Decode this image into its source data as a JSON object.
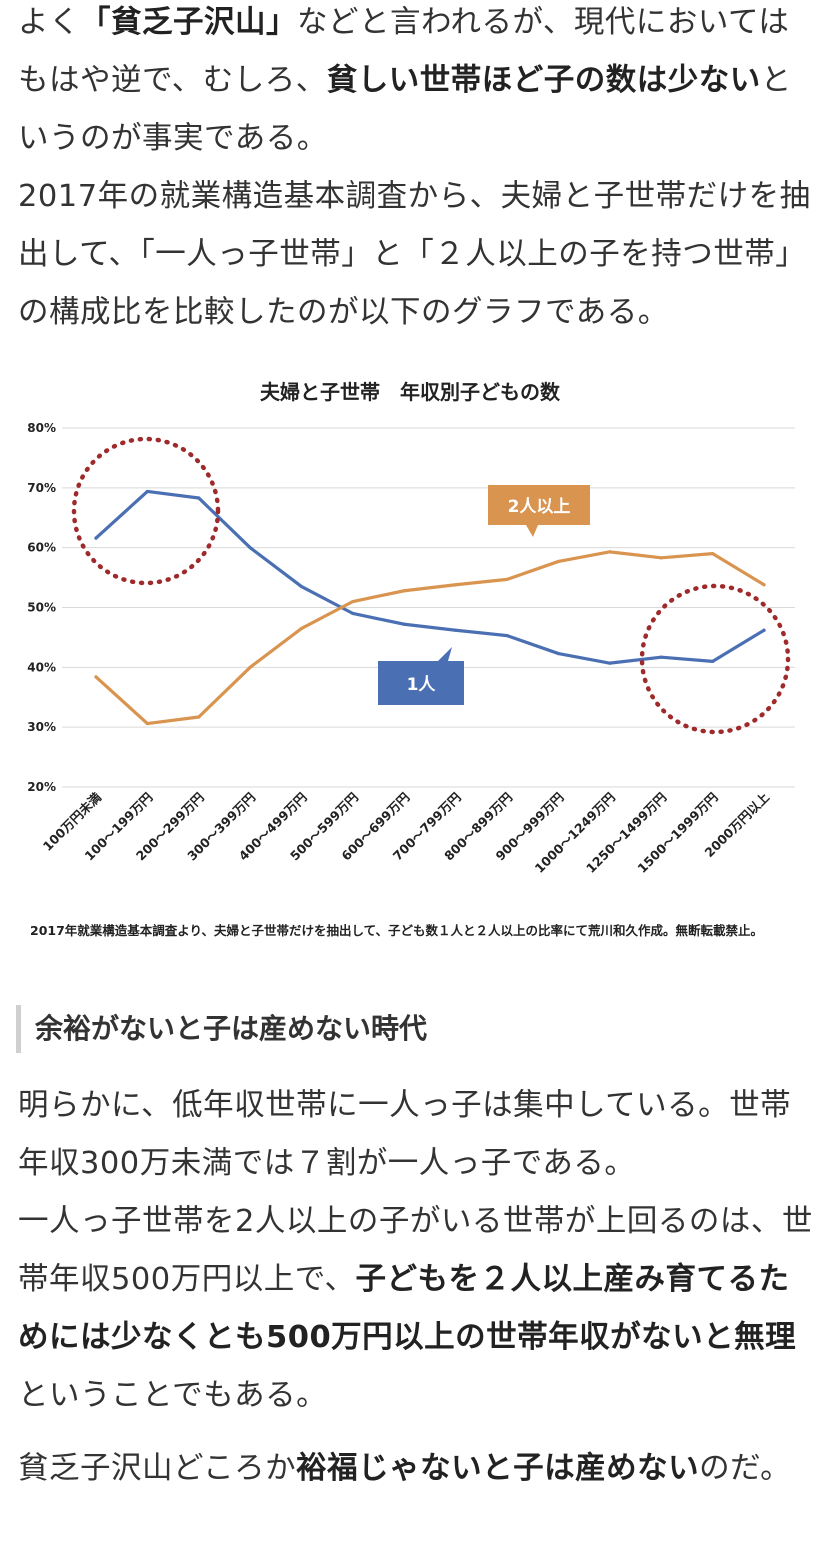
{
  "article": {
    "p1": [
      {
        "t": "よく",
        "b": false
      },
      {
        "t": "「貧乏子沢山」",
        "b": true
      },
      {
        "t": "などと言われるが、現代においてはもはや逆で、むしろ、",
        "b": false
      },
      {
        "t": "貧しい世帯ほど子の数は少ない",
        "b": true
      },
      {
        "t": "というのが事実である。",
        "b": false
      },
      {
        "t": "\n",
        "b": false
      },
      {
        "t": "2017年の就業構造基本調査から、夫婦と子世帯だけを抽出して、「一人っ子世帯」と「２人以上の子を持つ世帯」の構成比を比較したのが以下のグラフである。",
        "b": false
      }
    ],
    "chart_note": "2017年就業構造基本調査より、夫婦と子世帯だけを抽出して、子ども数１人と２人以上の比率にて荒川和久作成。無断転載禁止。",
    "section_heading": "余裕がないと子は産めない時代",
    "p2": [
      {
        "t": "明らかに、低年収世帯に一人っ子は集中している。世帯年収300万未満では７割が一人っ子である。",
        "b": false
      },
      {
        "t": "\n",
        "b": false
      },
      {
        "t": "一人っ子世帯を2人以上の子がいる世帯が上回るのは、世帯年収500万円以上で、",
        "b": false
      },
      {
        "t": "子どもを２人以上産み育てるためには少なくとも500万円以上の世帯年収がないと無理",
        "b": true
      },
      {
        "t": "ということでもある。",
        "b": false
      }
    ],
    "p3": [
      {
        "t": "貧乏子沢山どころか",
        "b": false
      },
      {
        "t": "裕福じゃないと子は産めない",
        "b": true
      },
      {
        "t": "のだ。",
        "b": false
      }
    ]
  },
  "chart_data": {
    "type": "line",
    "title": "夫婦と子世帯　年収別子どもの数",
    "categories": [
      "100万円未満",
      "100〜199万円",
      "200〜299万円",
      "300〜399万円",
      "400〜499万円",
      "500〜599万円",
      "600〜699万円",
      "700〜799万円",
      "800〜899万円",
      "900〜999万円",
      "1000〜1249万円",
      "1250〜1499万円",
      "1500〜1999万円",
      "2000万円以上"
    ],
    "ylim": [
      20,
      80
    ],
    "yticks": [
      "20%",
      "30%",
      "40%",
      "50%",
      "60%",
      "70%",
      "80%"
    ],
    "grid": true,
    "series": [
      {
        "name": "1人",
        "color": "#4a6fb3",
        "values": [
          61.6,
          69.4,
          68.3,
          60.0,
          53.5,
          49.0,
          47.2,
          46.2,
          45.3,
          42.3,
          40.7,
          41.7,
          41.0,
          46.2
        ]
      },
      {
        "name": "2人以上",
        "color": "#d9944f",
        "values": [
          38.4,
          30.6,
          31.7,
          40.0,
          46.5,
          51.0,
          52.8,
          53.8,
          54.7,
          57.7,
          59.3,
          58.3,
          59.0,
          53.8
        ]
      }
    ],
    "circle_color": "#9e2a2b"
  }
}
